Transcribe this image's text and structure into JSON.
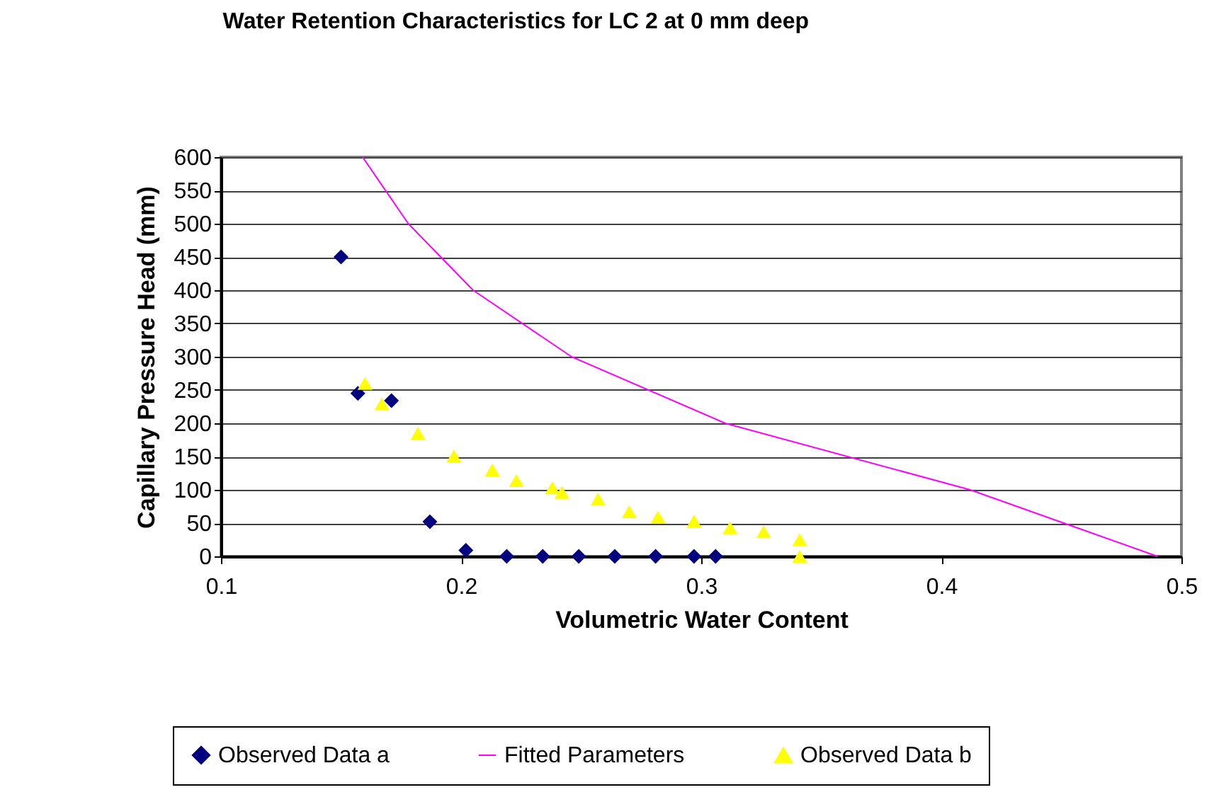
{
  "chart_data": {
    "type": "scatter",
    "title": "Water Retention Characteristics for LC 2 at 0 mm deep",
    "xlabel": "Volumetric Water Content",
    "ylabel": "Capillary Pressure Head (mm)",
    "xlim": [
      0.1,
      0.5
    ],
    "xticks": [
      0.1,
      0.2,
      0.3,
      0.4,
      0.5
    ],
    "ylim": [
      0,
      600
    ],
    "yticks": [
      0,
      50,
      100,
      150,
      200,
      250,
      300,
      350,
      400,
      450,
      500,
      550,
      600
    ],
    "grid": "y",
    "legend": "bottom",
    "series": [
      {
        "name": "Observed Data a",
        "type": "scatter",
        "marker": "diamond",
        "color": "#000080",
        "x": [
          0.15,
          0.157,
          0.171,
          0.187,
          0.202,
          0.219,
          0.234,
          0.249,
          0.264,
          0.281,
          0.297,
          0.306
        ],
        "values": [
          450,
          245,
          234,
          52,
          9,
          0,
          0,
          0,
          0,
          0,
          0,
          0
        ]
      },
      {
        "name": "Fitted Parameters",
        "type": "line",
        "marker": "none",
        "color": "#ff00ff",
        "x": [
          0.159,
          0.178,
          0.205,
          0.246,
          0.31,
          0.412,
          0.49
        ],
        "values": [
          600,
          500,
          400,
          300,
          200,
          100,
          0
        ]
      },
      {
        "name": "Observed Data b",
        "type": "scatter",
        "marker": "triangle",
        "color": "#ffff00",
        "x": [
          0.16,
          0.167,
          0.182,
          0.197,
          0.213,
          0.223,
          0.238,
          0.242,
          0.257,
          0.27,
          0.282,
          0.297,
          0.312,
          0.326,
          0.341,
          0.341
        ],
        "values": [
          260,
          229,
          185,
          151,
          130,
          114,
          103,
          96,
          86,
          67,
          59,
          53,
          43,
          37,
          25,
          0
        ]
      }
    ]
  }
}
